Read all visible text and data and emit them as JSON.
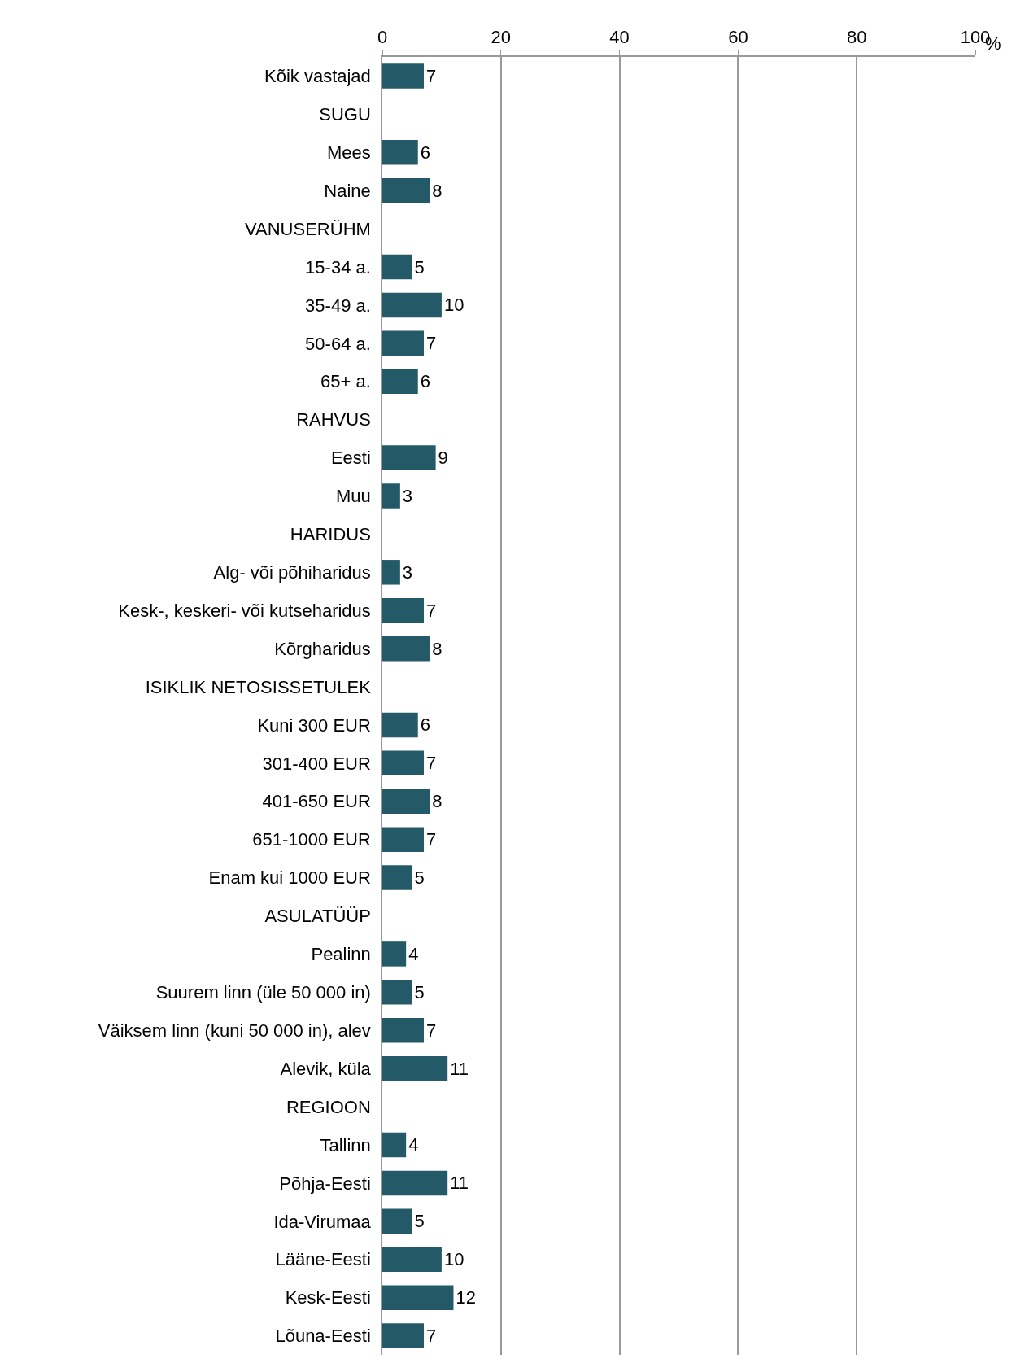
{
  "chart_data": {
    "type": "bar",
    "orientation": "horizontal",
    "xlabel": "%",
    "categories": [
      "Kõik vastajad",
      "SUGU",
      "Mees",
      "Naine",
      "VANUSERÜHM",
      "15-34 a.",
      "35-49 a.",
      "50-64 a.",
      "65+ a.",
      "RAHVUS",
      "Eesti",
      "Muu",
      "HARIDUS",
      "Alg- või põhiharidus",
      "Kesk-, keskeri- või kutseharidus",
      "Kõrgharidus",
      "ISIKLIK NETOSISSETULEK",
      "Kuni 300 EUR",
      "301-400 EUR",
      "401-650 EUR",
      "651-1000 EUR",
      "Enam kui 1000 EUR",
      "ASULATÜÜP",
      "Pealinn",
      "Suurem linn (üle 50 000 in)",
      "Väiksem linn (kuni 50 000 in), alev",
      "Alevik, küla",
      "REGIOON",
      "Tallinn",
      "Põhja-Eesti",
      "Ida-Virumaa",
      "Lääne-Eesti",
      "Kesk-Eesti",
      "Lõuna-Eesti"
    ],
    "values": [
      7,
      null,
      6,
      8,
      null,
      5,
      10,
      7,
      6,
      null,
      9,
      3,
      null,
      3,
      7,
      8,
      null,
      6,
      7,
      8,
      7,
      5,
      null,
      4,
      5,
      7,
      11,
      null,
      4,
      11,
      5,
      10,
      12,
      7
    ],
    "color": "#245a67",
    "data_labels": true,
    "xlim": [
      0,
      100
    ],
    "xticks": [
      0,
      20,
      40,
      60,
      80,
      100
    ],
    "grid": "x",
    "legend": false
  }
}
